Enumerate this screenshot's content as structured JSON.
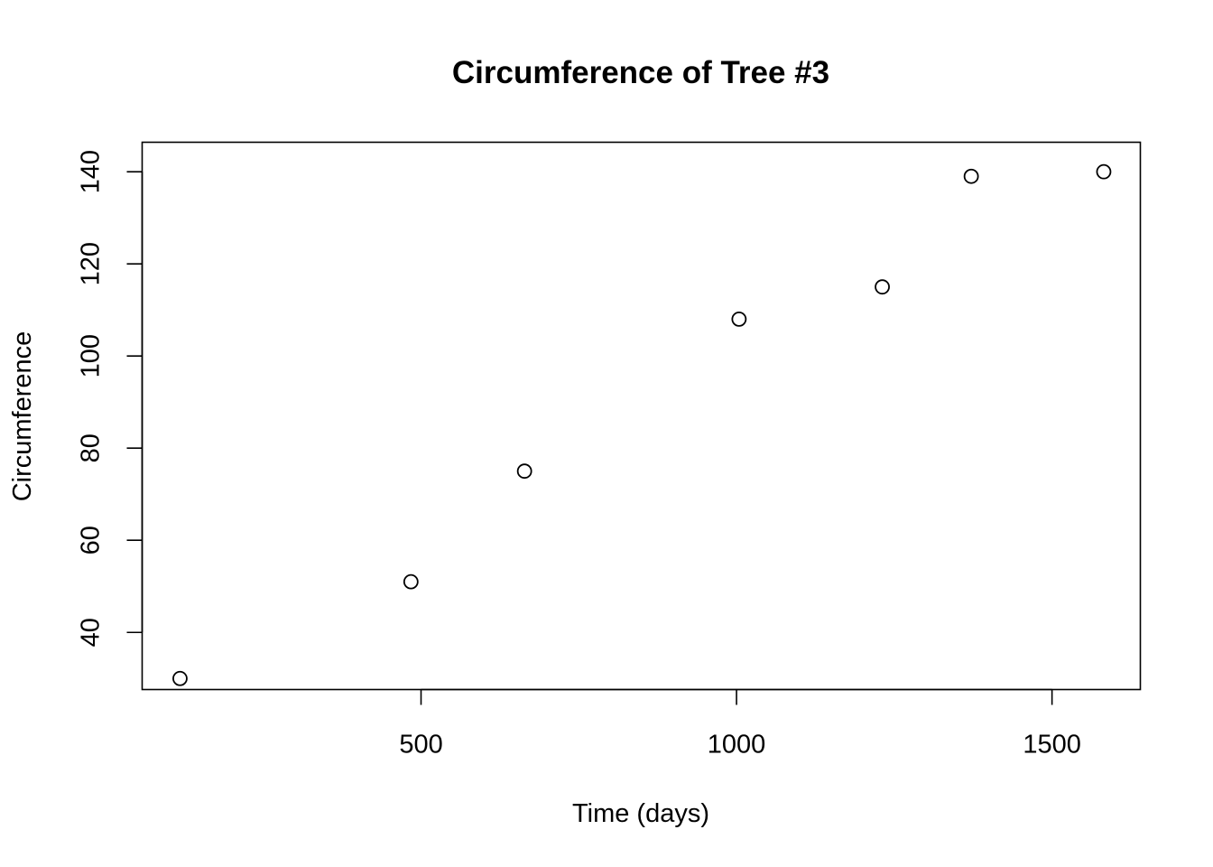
{
  "chart_data": {
    "type": "scatter",
    "title": "Circumference of Tree #3",
    "xlabel": "Time (days)",
    "ylabel": "Circumference",
    "xlim": [
      58,
      1640
    ],
    "ylim": [
      27.6,
      146.4
    ],
    "xticks": [
      500,
      1000,
      1500
    ],
    "yticks": [
      40,
      60,
      80,
      100,
      120,
      140
    ],
    "grid": false,
    "legend": "none",
    "series": [
      {
        "x": [
          118,
          484,
          664,
          1004,
          1231,
          1372,
          1582
        ],
        "y": [
          30,
          51,
          75,
          108,
          115,
          139,
          140
        ]
      }
    ],
    "colors": {
      "points": "#000000",
      "axes": "#000000",
      "background": "#ffffff"
    }
  }
}
